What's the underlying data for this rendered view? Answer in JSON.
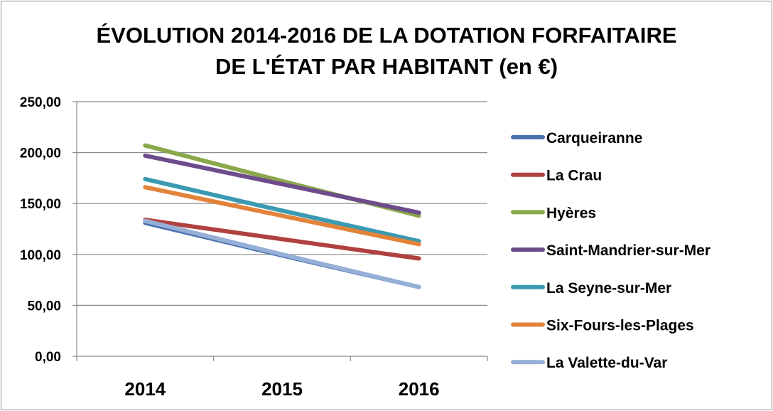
{
  "chart_data": {
    "type": "line",
    "title_line1": "ÉVOLUTION 2014-2016 DE LA DOTATION FORFAITAIRE",
    "title_line2": "DE L'ÉTAT PAR HABITANT (en €)",
    "categories": [
      "2014",
      "2015",
      "2016"
    ],
    "ylim": [
      0,
      250
    ],
    "yticks": [
      "0,00",
      "50,00",
      "100,00",
      "150,00",
      "200,00",
      "250,00"
    ],
    "grid": true,
    "legend_position": "right",
    "series": [
      {
        "name": "Carqueiranne",
        "color": "#4a72b0",
        "values": [
          131,
          99,
          68
        ]
      },
      {
        "name": "La Crau",
        "color": "#b0413e",
        "values": [
          134,
          115,
          96
        ]
      },
      {
        "name": "Hyères",
        "color": "#8aa84a",
        "values": [
          207,
          172,
          138
        ]
      },
      {
        "name": "Saint-Mandrier-sur-Mer",
        "color": "#6e4c8c",
        "values": [
          197,
          169,
          141
        ]
      },
      {
        "name": "La Seyne-sur-Mer",
        "color": "#3a9ab1",
        "values": [
          174,
          143,
          113
        ]
      },
      {
        "name": "Six-Fours-les-Plages",
        "color": "#e3833a",
        "values": [
          166,
          138,
          110
        ]
      },
      {
        "name": "La Valette-du-Var",
        "color": "#96afd7",
        "values": [
          133,
          100,
          68
        ]
      }
    ]
  }
}
